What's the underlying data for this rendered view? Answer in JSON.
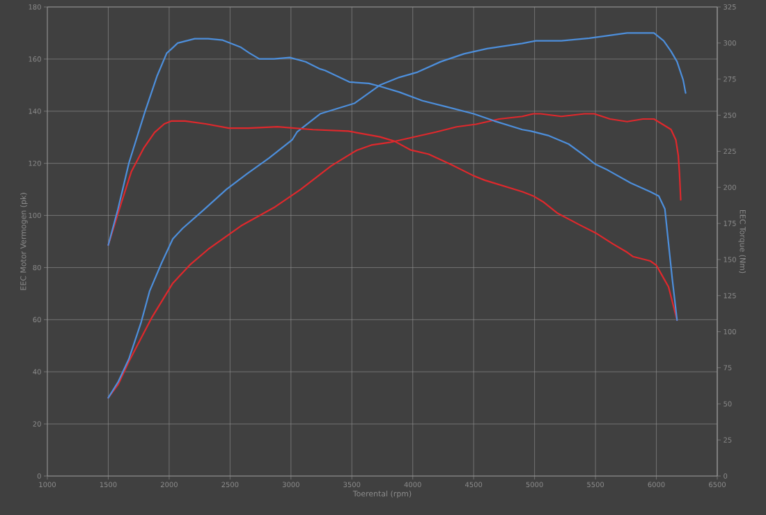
{
  "chart_data": {
    "type": "line",
    "xlabel": "Toerental (rpm)",
    "ylabel": "EEC Motor Vermogen (pk)",
    "y2label": "EEC Torque (Nm)",
    "xlim": [
      1000,
      6500
    ],
    "xticks": [
      1000,
      1500,
      2000,
      2500,
      3000,
      3500,
      4000,
      4500,
      5000,
      5500,
      6000,
      6500
    ],
    "ylim": [
      0,
      180
    ],
    "yticks": [
      0,
      20,
      40,
      60,
      80,
      100,
      120,
      140,
      160,
      180
    ],
    "y2lim": [
      0,
      325
    ],
    "y2ticks": [
      0,
      25,
      50,
      75,
      100,
      125,
      150,
      175,
      200,
      225,
      250,
      275,
      300,
      325
    ],
    "grid": true,
    "series": [
      {
        "color": "#e0282c",
        "x": [
          1500,
          1580,
          1670,
          1860,
          2030,
          2170,
          2320,
          2590,
          2860,
          3080,
          3330,
          3540,
          3660,
          3810,
          4000,
          4190,
          4360,
          4520,
          4710,
          4900,
          4990,
          5050,
          5220,
          5410,
          5490,
          5620,
          5760,
          5890,
          5980,
          6120,
          6160,
          6180,
          6190,
          6200
        ],
        "values": [
          30,
          35,
          44,
          61,
          74,
          81,
          87,
          96,
          103,
          110,
          119,
          125,
          127,
          128,
          130,
          132,
          134,
          135,
          137,
          138,
          139,
          139,
          138,
          139,
          139,
          137,
          136,
          137,
          137,
          133,
          129,
          123,
          116,
          106
        ]
      },
      {
        "color": "#4d8fdc",
        "x": [
          1500,
          1580,
          1670,
          1770,
          1840,
          1940,
          2030,
          2110,
          2280,
          2470,
          2640,
          2820,
          3010,
          3050,
          3240,
          3450,
          3520,
          3730,
          3890,
          4040,
          4230,
          4420,
          4610,
          4900,
          5010,
          5220,
          5450,
          5760,
          5870,
          5980,
          6060,
          6120,
          6170,
          6220,
          6240
        ],
        "values": [
          30,
          36,
          45,
          59,
          71,
          82,
          91,
          95,
          102,
          110,
          116,
          122,
          129,
          132,
          139,
          142,
          143,
          150,
          153,
          155,
          159,
          162,
          164,
          166,
          167,
          167,
          168,
          170,
          170,
          170,
          167,
          163,
          159,
          152,
          147
        ]
      },
      {
        "color": "#e0282c",
        "axis": "y2",
        "x": [
          1500,
          1610,
          1690,
          1790,
          1880,
          1960,
          2020,
          2130,
          2300,
          2490,
          2650,
          2890,
          3180,
          3470,
          3600,
          3730,
          3850,
          3980,
          4130,
          4310,
          4500,
          4590,
          4900,
          4990,
          5070,
          5190,
          5370,
          5510,
          5640,
          5760,
          5810,
          5950,
          6000,
          6040,
          6100,
          6170
        ],
        "values": [
          160,
          190,
          211,
          227,
          238,
          244,
          246,
          246,
          244,
          241,
          241,
          242,
          240,
          239,
          237,
          235,
          232,
          226,
          223,
          216,
          208,
          205,
          197,
          194,
          190,
          182,
          174,
          168,
          161,
          155,
          152,
          149,
          146,
          140,
          131,
          108
        ]
      },
      {
        "color": "#4d8fdc",
        "axis": "y2",
        "x": [
          1500,
          1580,
          1670,
          1800,
          1900,
          1980,
          2020,
          2070,
          2210,
          2320,
          2440,
          2590,
          2660,
          2740,
          2860,
          2990,
          3120,
          3240,
          3280,
          3480,
          3640,
          3730,
          3890,
          4080,
          4270,
          4500,
          4670,
          4900,
          4970,
          5110,
          5280,
          5410,
          5500,
          5600,
          5790,
          5950,
          6020,
          6070,
          6100,
          6130,
          6170
        ],
        "values": [
          160,
          185,
          217,
          252,
          277,
          293,
          296,
          300,
          303,
          303,
          302,
          297,
          293,
          289,
          289,
          290,
          287,
          282,
          281,
          273,
          272,
          270,
          266,
          260,
          256,
          251,
          246,
          240,
          239,
          236,
          230,
          222,
          216,
          212,
          203,
          197,
          194,
          185,
          161,
          137,
          108
        ]
      }
    ]
  }
}
